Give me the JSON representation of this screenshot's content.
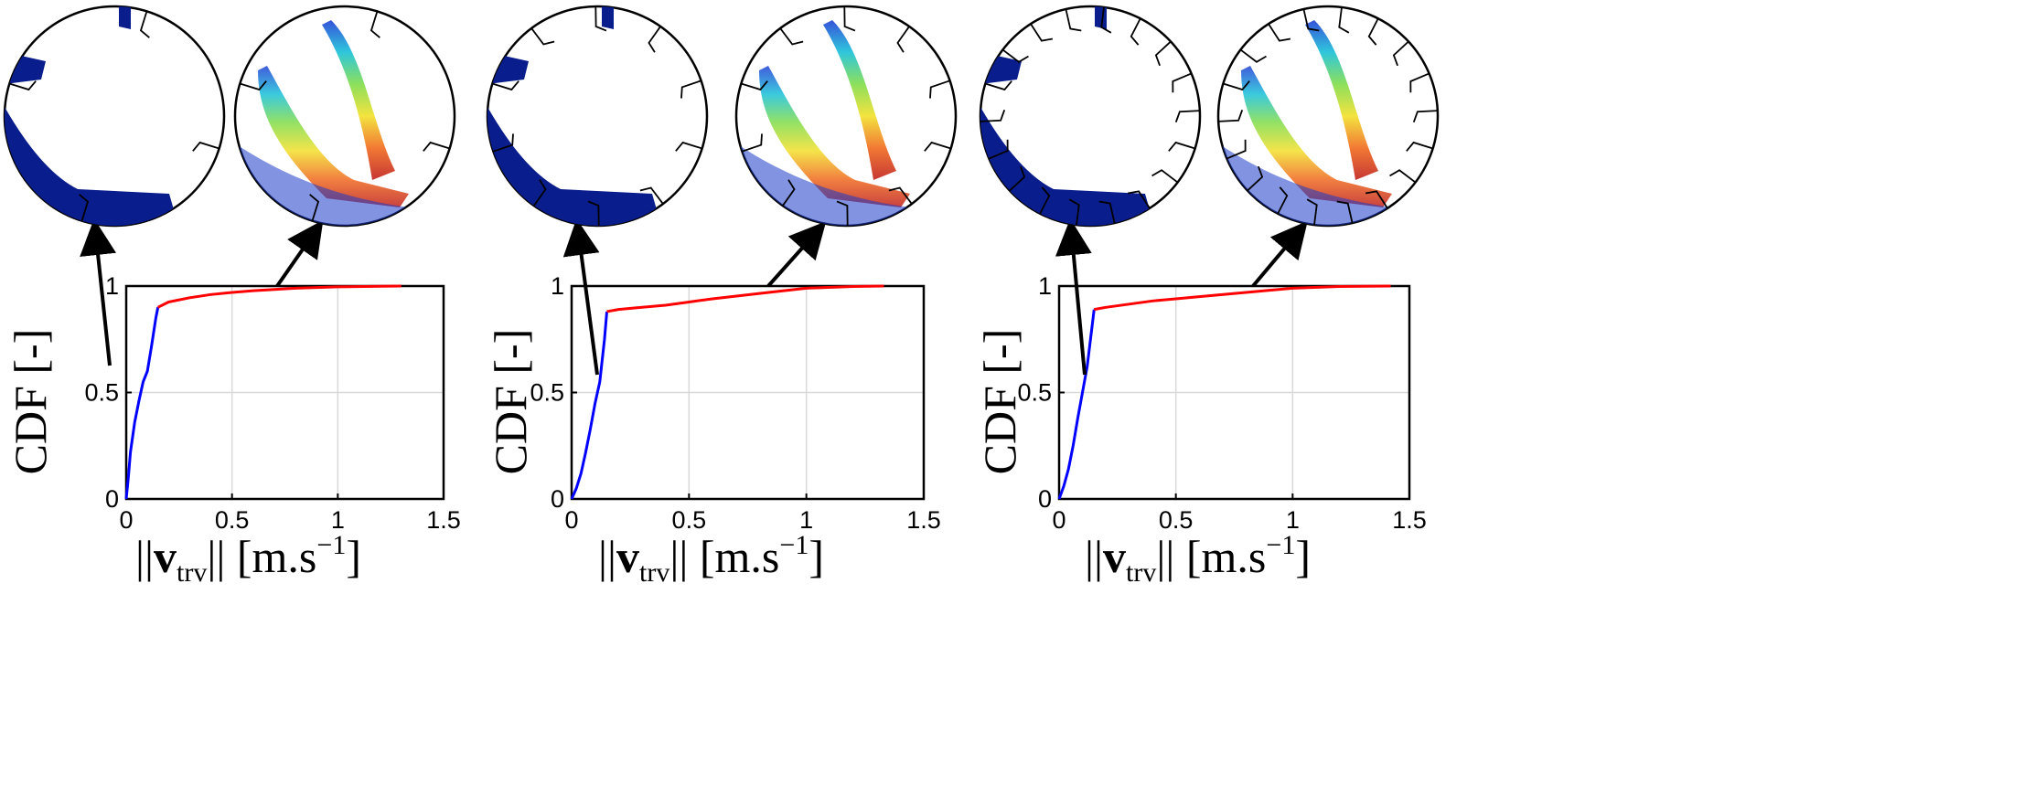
{
  "chart_data": [
    {
      "type": "line",
      "xlabel": "||v_trv|| [m.s^-1]",
      "ylabel": "CDF [-]",
      "xlim": [
        0,
        1.5
      ],
      "ylim": [
        0,
        1
      ],
      "xticks": [
        "0",
        "0.5",
        "1",
        "1.5"
      ],
      "yticks": [
        "0",
        "0.5",
        "1"
      ],
      "grid": true,
      "series": [
        {
          "color": "#0000ff",
          "x": [
            0,
            0.01,
            0.02,
            0.04,
            0.06,
            0.08,
            0.1,
            0.12,
            0.14,
            0.15
          ],
          "y": [
            0,
            0.1,
            0.22,
            0.36,
            0.46,
            0.55,
            0.6,
            0.72,
            0.85,
            0.9
          ]
        },
        {
          "color": "#ff0000",
          "x": [
            0.15,
            0.2,
            0.3,
            0.4,
            0.5,
            0.6,
            0.8,
            1.0,
            1.2,
            1.3
          ],
          "y": [
            0.9,
            0.925,
            0.945,
            0.96,
            0.97,
            0.978,
            0.99,
            0.996,
            0.999,
            1.0
          ]
        }
      ]
    },
    {
      "type": "line",
      "xlabel": "||v_trv|| [m.s^-1]",
      "ylabel": "CDF [-]",
      "xlim": [
        0,
        1.5
      ],
      "ylim": [
        0,
        1
      ],
      "xticks": [
        "0",
        "0.5",
        "1",
        "1.5"
      ],
      "yticks": [
        "0",
        "0.5",
        "1"
      ],
      "grid": true,
      "series": [
        {
          "color": "#0000ff",
          "x": [
            0,
            0.02,
            0.04,
            0.06,
            0.08,
            0.1,
            0.12,
            0.14,
            0.15
          ],
          "y": [
            0,
            0.05,
            0.12,
            0.22,
            0.33,
            0.45,
            0.55,
            0.75,
            0.88
          ]
        },
        {
          "color": "#ff0000",
          "x": [
            0.15,
            0.2,
            0.3,
            0.4,
            0.5,
            0.6,
            0.8,
            1.0,
            1.2,
            1.33
          ],
          "y": [
            0.88,
            0.89,
            0.9,
            0.91,
            0.925,
            0.94,
            0.965,
            0.99,
            0.998,
            1.0
          ]
        }
      ]
    },
    {
      "type": "line",
      "xlabel": "||v_trv|| [m.s^-1]",
      "ylabel": "CDF [-]",
      "xlim": [
        0,
        1.5
      ],
      "ylim": [
        0,
        1
      ],
      "xticks": [
        "0",
        "0.5",
        "1",
        "1.5"
      ],
      "yticks": [
        "0",
        "0.5",
        "1"
      ],
      "grid": true,
      "series": [
        {
          "color": "#0000ff",
          "x": [
            0,
            0.02,
            0.04,
            0.06,
            0.08,
            0.1,
            0.12,
            0.14,
            0.15
          ],
          "y": [
            0,
            0.06,
            0.14,
            0.25,
            0.38,
            0.5,
            0.62,
            0.8,
            0.89
          ]
        },
        {
          "color": "#ff0000",
          "x": [
            0.15,
            0.2,
            0.3,
            0.4,
            0.5,
            0.6,
            0.8,
            1.0,
            1.2,
            1.42
          ],
          "y": [
            0.89,
            0.9,
            0.915,
            0.93,
            0.94,
            0.95,
            0.97,
            0.99,
            0.998,
            1.0
          ]
        }
      ]
    }
  ]
}
